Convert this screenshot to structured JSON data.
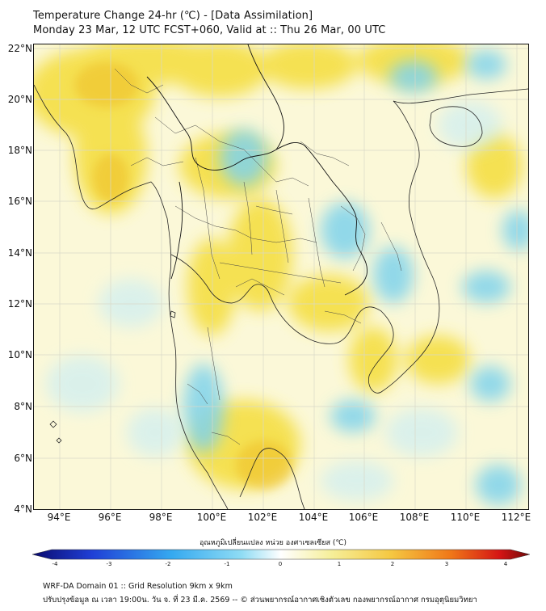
{
  "header": {
    "title_line1": "Temperature Change 24-hr (℃) - [Data Assimilation]",
    "title_line2": "Monday 23 Mar, 12 UTC FCST+060, Valid at :: Thu 26 Mar, 00 UTC"
  },
  "map": {
    "lat_labels": [
      "22°N",
      "20°N",
      "18°N",
      "16°N",
      "14°N",
      "12°N",
      "10°N",
      "8°N",
      "6°N",
      "4°N"
    ],
    "lon_labels": [
      "94°E",
      "96°E",
      "98°E",
      "100°E",
      "102°E",
      "104°E",
      "106°E",
      "108°E",
      "110°E",
      "112°E"
    ],
    "background_color": "#fbf8d8",
    "warm_color": "#f4dd3a",
    "cool_color": "#7fd3ec"
  },
  "colorbar": {
    "title": "อุณหภูมิเปลี่ยนแปลง หน่วย องศาเซลเซียส (℃)",
    "ticks": [
      "-4",
      "-3",
      "-2",
      "-1",
      "0",
      "1",
      "2",
      "3",
      "4"
    ],
    "stops": [
      "#0a0a6e",
      "#1f3fd6",
      "#35a9f0",
      "#8fdcf4",
      "#ffffff",
      "#f6ef9a",
      "#f5c842",
      "#f07818",
      "#d41414",
      "#6e0a0a"
    ]
  },
  "footer": {
    "line1": "WRF-DA Domain 01 :: Grid Resolution 9km x 9km",
    "line2": "ปรับปรุงข้อมูล ณ เวลา 19:00น. วัน จ. ที่ 23 มี.ค. 2569 -- © ส่วนพยากรณ์อากาศเชิงตัวเลข กองพยากรณ์อากาศ กรมอุตุนิยมวิทยา"
  }
}
